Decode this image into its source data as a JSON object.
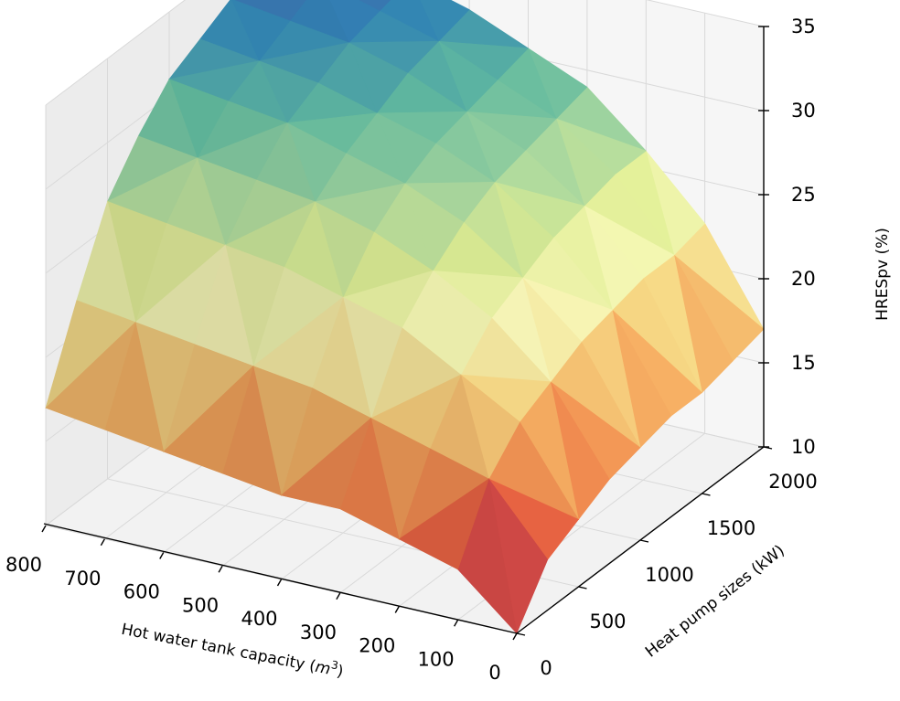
{
  "chart_data": {
    "type": "surface3d",
    "title": "",
    "xlabel": "Hot water tank capacity ($m^3$)",
    "ylabel": "Heat pump sizes (kW)",
    "zlabel": "HRESpv (%)",
    "x_ticks": [
      "800",
      "700",
      "600",
      "500",
      "400",
      "300",
      "200",
      "100",
      "0"
    ],
    "y_ticks": [
      "0",
      "500",
      "1000",
      "1500",
      "2000"
    ],
    "z_ticks": [
      "35",
      "30",
      "25",
      "20",
      "15",
      "10"
    ],
    "xlim": [
      0,
      800
    ],
    "ylim": [
      0,
      2000
    ],
    "zlim": [
      10,
      35
    ],
    "colormap": "Spectral",
    "grid": true,
    "x": [
      0,
      100,
      200,
      300,
      400,
      500,
      600,
      700,
      800
    ],
    "y": [
      0,
      250,
      500,
      750,
      1000,
      1250,
      1500,
      1750,
      2000
    ],
    "z": [
      [
        10,
        13,
        14,
        15,
        15,
        15.5,
        16,
        16.5,
        17
      ],
      [
        13,
        17,
        18,
        19,
        20,
        20.5,
        21,
        21.5,
        22
      ],
      [
        14,
        19,
        21,
        23,
        24,
        25,
        25.5,
        26,
        26.5
      ],
      [
        15,
        20,
        23,
        25,
        26.5,
        27.5,
        28,
        28.5,
        29
      ],
      [
        15.5,
        21,
        24,
        26.5,
        28,
        29,
        30,
        30.5,
        31
      ],
      [
        16,
        21.5,
        25,
        27.5,
        29,
        30,
        31,
        31.5,
        32
      ],
      [
        16,
        22,
        25.5,
        28,
        29.5,
        31,
        32,
        32.5,
        33
      ],
      [
        16.5,
        22,
        26,
        28.5,
        30,
        31.5,
        32.5,
        33.5,
        34
      ],
      [
        17,
        22.5,
        26,
        29,
        30.5,
        32,
        33,
        34,
        35
      ]
    ]
  }
}
